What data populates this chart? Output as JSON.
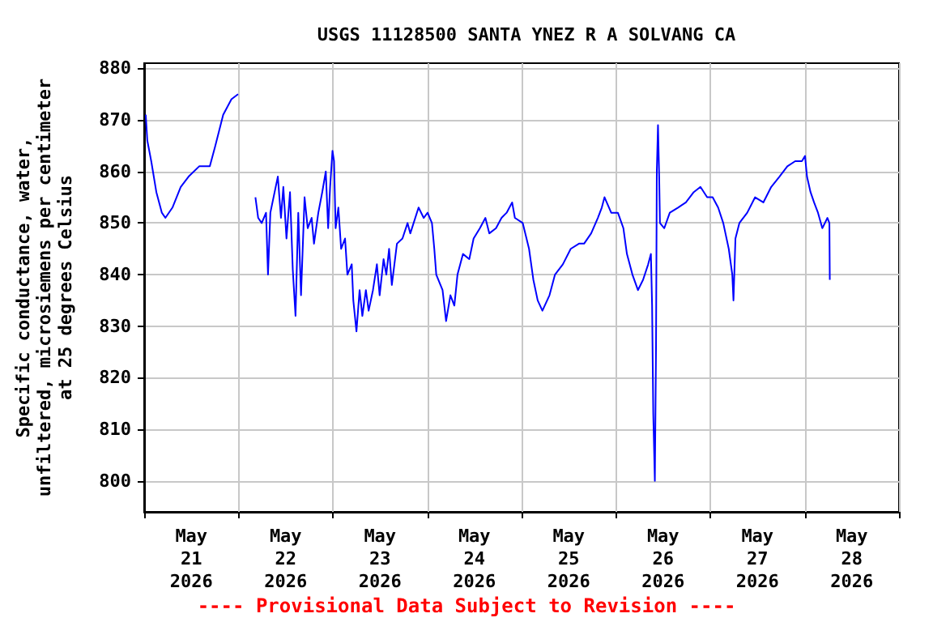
{
  "chart_data": {
    "type": "line",
    "title": "USGS 11128500 SANTA YNEZ R A SOLVANG CA",
    "ylabel": "Specific conductance, water,\nunfiltered, microsiemens per centimeter\nat 25 degrees Celsius",
    "annotations": [
      "---- Provisional Data Subject to Revision ----"
    ],
    "x": [
      "2026-05-21T00:24",
      "2026-05-21T00:48",
      "2026-05-21T01:48",
      "2026-05-21T03:06",
      "2026-05-21T04:30",
      "2026-05-21T05:24",
      "2026-05-21T07:12",
      "2026-05-21T09:18",
      "2026-05-21T11:18",
      "2026-05-21T14:00",
      "2026-05-21T16:42",
      "2026-05-21T18:06",
      "2026-05-21T20:06",
      "2026-05-21T22:12",
      "2026-05-21T23:54",
      "2026-05-22T02:00",
      "2026-05-22T04:18",
      "2026-05-22T05:00",
      "2026-05-22T05:54",
      "2026-05-22T07:00",
      "2026-05-22T07:30",
      "2026-05-22T08:06",
      "2026-05-22T10:00",
      "2026-05-22T10:48",
      "2026-05-22T11:24",
      "2026-05-22T12:12",
      "2026-05-22T13:06",
      "2026-05-22T13:48",
      "2026-05-22T14:30",
      "2026-05-22T15:12",
      "2026-05-22T15:54",
      "2026-05-22T16:48",
      "2026-05-22T17:36",
      "2026-05-22T18:36",
      "2026-05-22T19:12",
      "2026-05-22T20:18",
      "2026-05-22T21:18",
      "2026-05-22T22:12",
      "2026-05-22T22:48",
      "2026-05-22T23:18",
      "2026-05-22T23:54",
      "2026-05-23T00:18",
      "2026-05-23T00:42",
      "2026-05-23T01:24",
      "2026-05-23T02:06",
      "2026-05-23T03:06",
      "2026-05-23T03:42",
      "2026-05-23T04:48",
      "2026-05-23T05:12",
      "2026-05-23T06:00",
      "2026-05-23T06:48",
      "2026-05-23T07:30",
      "2026-05-23T08:24",
      "2026-05-23T09:06",
      "2026-05-23T10:12",
      "2026-05-23T11:12",
      "2026-05-23T11:54",
      "2026-05-23T12:54",
      "2026-05-23T13:36",
      "2026-05-23T14:18",
      "2026-05-23T15:00",
      "2026-05-23T16:18",
      "2026-05-23T17:42",
      "2026-05-23T19:00",
      "2026-05-23T19:42",
      "2026-05-23T21:48",
      "2026-05-23T23:06",
      "2026-05-24T00:06",
      "2026-05-24T01:12",
      "2026-05-24T01:48",
      "2026-05-24T02:18",
      "2026-05-24T03:54",
      "2026-05-24T04:48",
      "2026-05-24T05:54",
      "2026-05-24T06:54",
      "2026-05-24T07:42",
      "2026-05-24T09:06",
      "2026-05-24T10:42",
      "2026-05-24T11:48",
      "2026-05-24T13:24",
      "2026-05-24T14:48",
      "2026-05-24T15:48",
      "2026-05-24T17:30",
      "2026-05-24T18:54",
      "2026-05-24T20:12",
      "2026-05-24T21:36",
      "2026-05-24T22:18",
      "2026-05-25T00:18",
      "2026-05-25T01:54",
      "2026-05-25T03:00",
      "2026-05-25T04:06",
      "2026-05-25T05:18",
      "2026-05-25T07:06",
      "2026-05-25T08:30",
      "2026-05-25T10:30",
      "2026-05-25T12:30",
      "2026-05-25T14:36",
      "2026-05-25T15:54",
      "2026-05-25T17:42",
      "2026-05-25T19:24",
      "2026-05-25T20:24",
      "2026-05-25T21:06",
      "2026-05-25T22:48",
      "2026-05-26T00:30",
      "2026-05-26T01:54",
      "2026-05-26T02:48",
      "2026-05-26T04:12",
      "2026-05-26T05:36",
      "2026-05-26T06:54",
      "2026-05-26T08:12",
      "2026-05-26T08:54",
      "2026-05-26T09:12",
      "2026-05-26T09:30",
      "2026-05-26T09:54",
      "2026-05-26T10:12",
      "2026-05-26T10:24",
      "2026-05-26T10:42",
      "2026-05-26T11:00",
      "2026-05-26T11:12",
      "2026-05-26T12:18",
      "2026-05-26T13:42",
      "2026-05-26T15:48",
      "2026-05-26T17:48",
      "2026-05-26T19:48",
      "2026-05-26T21:30",
      "2026-05-26T23:12",
      "2026-05-27T00:36",
      "2026-05-27T02:00",
      "2026-05-27T03:18",
      "2026-05-27T04:42",
      "2026-05-27T05:36",
      "2026-05-27T05:54",
      "2026-05-27T06:24",
      "2026-05-27T07:24",
      "2026-05-27T09:24",
      "2026-05-27T11:24",
      "2026-05-27T13:30",
      "2026-05-27T15:30",
      "2026-05-27T17:36",
      "2026-05-27T19:36",
      "2026-05-27T21:36",
      "2026-05-27T23:18",
      "2026-05-28T00:06",
      "2026-05-28T00:36",
      "2026-05-28T01:30",
      "2026-05-28T02:24",
      "2026-05-28T03:24",
      "2026-05-28T04:30",
      "2026-05-28T05:48",
      "2026-05-28T06:18",
      "2026-05-28T06:24"
    ],
    "series": [
      {
        "color": "#0000ff",
        "values": [
          871,
          866,
          862,
          856,
          852,
          851,
          853,
          857,
          859,
          861,
          861,
          865,
          871,
          874,
          875,
          null,
          855,
          851,
          850,
          852,
          840,
          852,
          859,
          851,
          857,
          847,
          856,
          841,
          832,
          852,
          836,
          855,
          849,
          851,
          846,
          852,
          856,
          860,
          849,
          857,
          864,
          862,
          849,
          853,
          845,
          847,
          840,
          842,
          835,
          829,
          837,
          832,
          837,
          833,
          837,
          842,
          836,
          843,
          840,
          845,
          838,
          846,
          847,
          850,
          848,
          853,
          851,
          852,
          850,
          845,
          840,
          837,
          831,
          836,
          834,
          840,
          844,
          843,
          847,
          849,
          851,
          848,
          849,
          851,
          852,
          854,
          851,
          850,
          845,
          839,
          835,
          833,
          836,
          840,
          842,
          845,
          846,
          846,
          848,
          851,
          853,
          855,
          852,
          852,
          849,
          844,
          840,
          837,
          839,
          842,
          844,
          834,
          813,
          800,
          826,
          860,
          869,
          859,
          850,
          849,
          852,
          853,
          854,
          856,
          857,
          855,
          855,
          853,
          850,
          845,
          840,
          835,
          847,
          850,
          852,
          855,
          854,
          857,
          859,
          861,
          862,
          862,
          863,
          859,
          856,
          854,
          852,
          849,
          851,
          850,
          839
        ]
      }
    ],
    "xlim": [
      "2026-05-21",
      "2026-05-29"
    ],
    "xticks": [
      {
        "value": "2026-05-21",
        "label": null
      },
      {
        "value": "2026-05-21T12:00",
        "label": "May\n21\n2026"
      },
      {
        "value": "2026-05-22",
        "label": null
      },
      {
        "value": "2026-05-22T12:00",
        "label": "May\n22\n2026"
      },
      {
        "value": "2026-05-23",
        "label": null
      },
      {
        "value": "2026-05-23T12:00",
        "label": "May\n23\n2026"
      },
      {
        "value": "2026-05-24",
        "label": null
      },
      {
        "value": "2026-05-24T12:00",
        "label": "May\n24\n2026"
      },
      {
        "value": "2026-05-25",
        "label": null
      },
      {
        "value": "2026-05-25T12:00",
        "label": "May\n25\n2026"
      },
      {
        "value": "2026-05-26",
        "label": null
      },
      {
        "value": "2026-05-26T12:00",
        "label": "May\n26\n2026"
      },
      {
        "value": "2026-05-27",
        "label": null
      },
      {
        "value": "2026-05-27T12:00",
        "label": "May\n27\n2026"
      },
      {
        "value": "2026-05-28",
        "label": null
      },
      {
        "value": "2026-05-28T12:00",
        "label": "May\n28\n2026"
      },
      {
        "value": "2026-05-29",
        "label": null
      }
    ],
    "ylim": [
      794,
      881
    ],
    "yticks": [
      800,
      810,
      820,
      830,
      840,
      850,
      860,
      870,
      880
    ],
    "grid": true,
    "line_style": "solid",
    "marker": "none"
  }
}
